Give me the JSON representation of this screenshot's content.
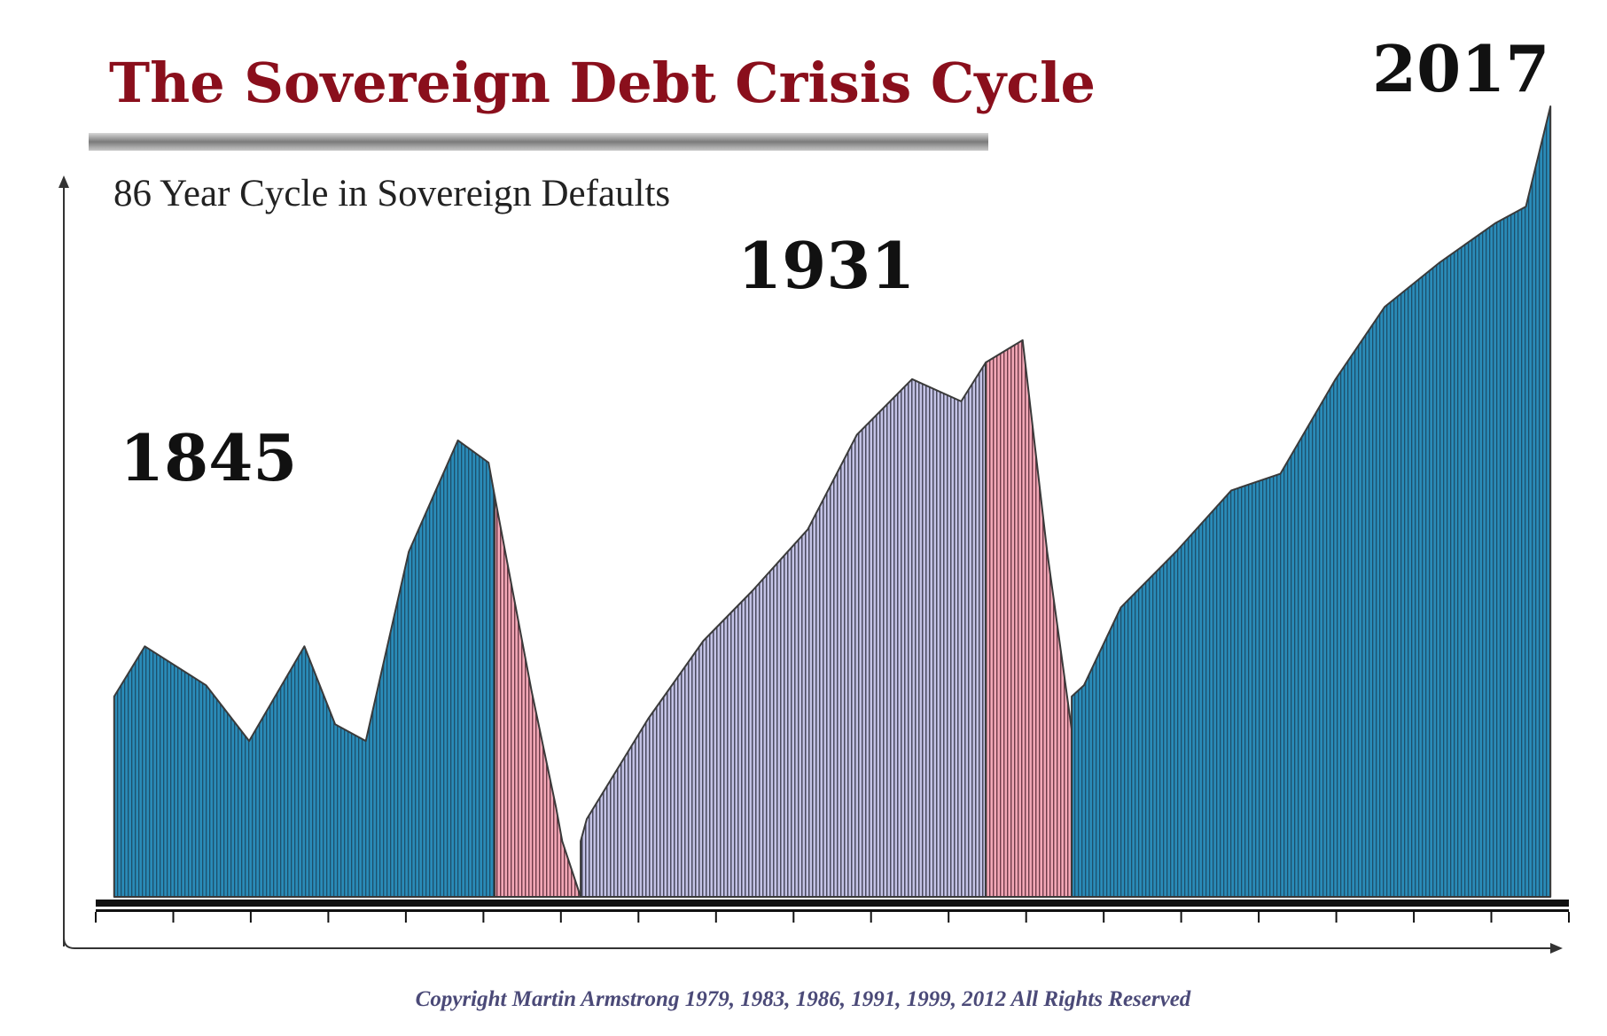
{
  "chart_data": {
    "type": "area",
    "title": "The Sovereign Debt Crisis Cycle",
    "subtitle": "86 Year Cycle in Sovereign Defaults",
    "xlabel": "",
    "ylabel": "",
    "peaks": [
      {
        "label": "1845",
        "year": 1845
      },
      {
        "label": "1931",
        "year": 1931
      },
      {
        "label": "2017",
        "year": 2017
      }
    ],
    "series": [
      {
        "color": "#2a7fa8",
        "x": [
          1783,
          1788,
          1798,
          1805,
          1814,
          1819,
          1824,
          1831,
          1835,
          1839,
          1844,
          1845
        ],
        "y": [
          0.36,
          0.45,
          0.38,
          0.28,
          0.45,
          0.31,
          0.28,
          0.62,
          0.72,
          0.82,
          0.78,
          0.72
        ]
      },
      {
        "color": "#e59aa8",
        "x": [
          1845,
          1851,
          1855,
          1856,
          1859
        ],
        "y": [
          0.72,
          0.37,
          0.16,
          0.1,
          0.0
        ]
      },
      {
        "color": "#b8b7dc",
        "x": [
          1859,
          1860,
          1870,
          1879,
          1887,
          1896,
          1904,
          1913,
          1921,
          1925
        ],
        "y": [
          0.1,
          0.14,
          0.32,
          0.46,
          0.55,
          0.66,
          0.83,
          0.93,
          0.89,
          0.96
        ]
      },
      {
        "color": "#e59aa8",
        "x": [
          1925,
          1931,
          1935,
          1939
        ],
        "y": [
          0.96,
          1.0,
          0.62,
          0.3
        ]
      },
      {
        "color": "#2a7fa8",
        "x": [
          1939,
          1941,
          1947,
          1956,
          1965,
          1973,
          1982,
          1990,
          1999,
          2008,
          2013,
          2017
        ],
        "y": [
          0.36,
          0.38,
          0.52,
          0.62,
          0.73,
          0.76,
          0.93,
          1.06,
          1.14,
          1.21,
          1.24,
          1.42
        ]
      }
    ],
    "xlim": [
      1780,
      2020
    ],
    "grid": false
  },
  "copyright": "Copyright Martin Armstrong 1979, 1983, 1986, 1991, 1999, 2012  All Rights Reserved"
}
